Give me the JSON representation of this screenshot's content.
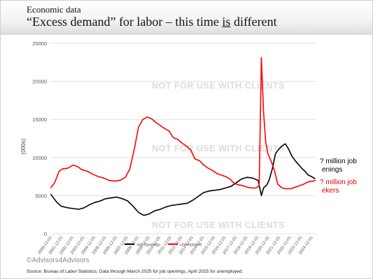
{
  "slide": {
    "kicker": "Economic data",
    "headline_before": "“Excess demand” for labor – this time ",
    "headline_underlined": "is",
    "headline_after": " different",
    "watermark": "NOT FOR USE WITH CLIENTS",
    "brand": "©Advisors4Advisors",
    "source": "Source: Bureau of Labor Statistics. Data through March 2025 for job openings, April 2025 for unemployed.",
    "callout_openings_line1": "? million job",
    "callout_openings_line2": "enings",
    "callout_seekers_line1": "? million job",
    "callout_seekers_line2": "ekers",
    "colors": {
      "openings": "#000000",
      "unemployed": "#ff0000",
      "callout_red": "#e00000",
      "grid": "#d9d9d9",
      "watermark": "#dcdcdc"
    }
  },
  "chart_data": {
    "type": "line",
    "xlabel": "",
    "ylabel": "(000s)",
    "ylim": [
      0,
      25000
    ],
    "yticks": [
      0,
      5000,
      10000,
      15000,
      20000,
      25000
    ],
    "grid": true,
    "legend_position": "bottom",
    "xtick_labels": [
      "2000-12-01",
      "2001-12-01",
      "2002-12-01",
      "2003-12-01",
      "2004-12-01",
      "2005-12-01",
      "2006-12-01",
      "2007-12-01",
      "2008-12-01",
      "2009-12-01",
      "2010-12-01",
      "2011-12-01",
      "2012-12-01",
      "2013-12-01",
      "2014-12-01",
      "2015-12-01",
      "2016-12-01",
      "2017-12-01",
      "2018-12-01",
      "2019-12-01",
      "2020-12-01",
      "2021-12-01",
      "2022-12-01",
      "2023-12-01",
      "2024-12-01"
    ],
    "x_range": [
      2000.9,
      2025.35
    ],
    "series": [
      {
        "name": "Job Openings",
        "color": "#000000",
        "x": [
          2000.92,
          2001.5,
          2001.9,
          2002.5,
          2003.0,
          2003.5,
          2004.0,
          2004.5,
          2005.0,
          2005.5,
          2006.0,
          2006.5,
          2007.0,
          2007.5,
          2008.0,
          2008.5,
          2009.0,
          2009.5,
          2010.0,
          2010.5,
          2011.0,
          2011.5,
          2012.0,
          2012.5,
          2013.0,
          2013.5,
          2014.0,
          2014.5,
          2015.0,
          2015.5,
          2016.0,
          2016.5,
          2017.0,
          2017.5,
          2018.0,
          2018.5,
          2019.0,
          2019.5,
          2020.0,
          2020.3,
          2020.5,
          2020.8,
          2021.0,
          2021.3,
          2021.6,
          2021.9,
          2022.2,
          2022.5,
          2022.8,
          2023.1,
          2023.4,
          2023.7,
          2024.0,
          2024.3,
          2024.6,
          2024.9,
          2025.25
        ],
        "y": [
          5200,
          4100,
          3600,
          3400,
          3300,
          3200,
          3400,
          3800,
          4100,
          4300,
          4600,
          4700,
          4800,
          4600,
          4300,
          3600,
          2800,
          2400,
          2600,
          3000,
          3200,
          3500,
          3700,
          3800,
          3900,
          4000,
          4400,
          4900,
          5400,
          5600,
          5700,
          5800,
          6000,
          6200,
          6700,
          7200,
          7400,
          7300,
          7000,
          5000,
          6000,
          6400,
          7000,
          8500,
          10500,
          11100,
          11500,
          11800,
          11100,
          10200,
          9600,
          9100,
          8600,
          8200,
          7700,
          7500,
          7200
        ]
      },
      {
        "name": "Unemployed",
        "color": "#ff0000",
        "x": [
          2000.92,
          2001.3,
          2001.7,
          2002.0,
          2002.5,
          2003.0,
          2003.4,
          2003.8,
          2004.3,
          2004.8,
          2005.3,
          2005.8,
          2006.3,
          2006.8,
          2007.3,
          2007.8,
          2008.2,
          2008.6,
          2009.0,
          2009.4,
          2009.8,
          2010.2,
          2010.6,
          2011.0,
          2011.4,
          2011.8,
          2012.2,
          2012.6,
          2013.0,
          2013.4,
          2013.8,
          2014.2,
          2014.6,
          2015.0,
          2015.4,
          2015.8,
          2016.2,
          2016.6,
          2017.0,
          2017.4,
          2017.8,
          2018.2,
          2018.6,
          2019.0,
          2019.4,
          2019.8,
          2020.1,
          2020.3,
          2020.5,
          2020.7,
          2020.9,
          2021.2,
          2021.5,
          2021.8,
          2022.2,
          2022.6,
          2023.0,
          2023.4,
          2023.8,
          2024.2,
          2024.6,
          2025.0,
          2025.3
        ],
        "y": [
          6000,
          6700,
          8200,
          8500,
          8600,
          9000,
          8800,
          8400,
          8200,
          7800,
          7500,
          7300,
          7000,
          6900,
          7000,
          7400,
          8500,
          11000,
          14000,
          15000,
          15300,
          15100,
          14600,
          14200,
          13800,
          13500,
          12600,
          12400,
          11900,
          11500,
          11000,
          9800,
          9600,
          9000,
          8600,
          8300,
          7900,
          7700,
          7500,
          7200,
          6600,
          6400,
          6300,
          6100,
          6000,
          6000,
          6300,
          23100,
          16000,
          12000,
          10500,
          9500,
          8300,
          6500,
          6000,
          5900,
          5900,
          6100,
          6300,
          6500,
          6800,
          6900,
          7000
        ]
      }
    ]
  }
}
